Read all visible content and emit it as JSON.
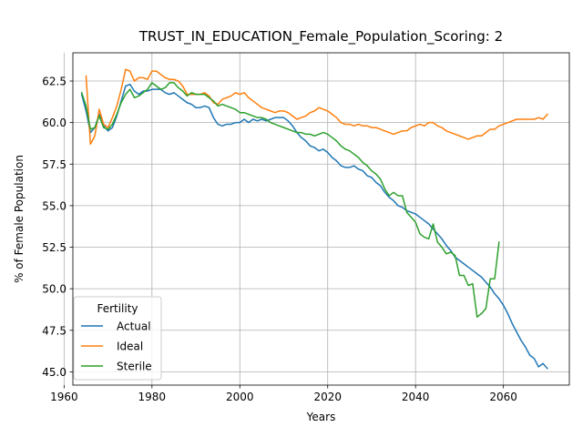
{
  "chart_data": {
    "type": "line",
    "title": "TRUST_IN_EDUCATION_Female_Population_Scoring: 2",
    "xlabel": "Years",
    "ylabel": "% of Female Population",
    "xlim": [
      1962,
      2075
    ],
    "ylim": [
      44.2,
      64.2
    ],
    "xticks": [
      1960,
      1980,
      2000,
      2020,
      2040,
      2060
    ],
    "yticks": [
      45.0,
      47.5,
      50.0,
      52.5,
      55.0,
      57.5,
      60.0,
      62.5
    ],
    "xtick_labels": [
      "1960",
      "1980",
      "2000",
      "2020",
      "2040",
      "2060"
    ],
    "ytick_labels": [
      "45.0",
      "47.5",
      "50.0",
      "52.5",
      "55.0",
      "57.5",
      "60.0",
      "62.5"
    ],
    "grid": true,
    "legend": {
      "title": "Fertility",
      "position": "lower-left"
    },
    "series": [
      {
        "name": "Actual",
        "color": "#1f77b4",
        "points": [
          [
            1964,
            61.7
          ],
          [
            1965,
            60.7
          ],
          [
            1966,
            59.4
          ],
          [
            1967,
            59.7
          ],
          [
            1968,
            60.5
          ],
          [
            1969,
            59.8
          ],
          [
            1970,
            59.5
          ],
          [
            1971,
            59.7
          ],
          [
            1972,
            60.4
          ],
          [
            1973,
            61.3
          ],
          [
            1974,
            62.2
          ],
          [
            1975,
            62.3
          ],
          [
            1976,
            61.9
          ],
          [
            1977,
            61.7
          ],
          [
            1978,
            61.9
          ],
          [
            1979,
            61.9
          ],
          [
            1980,
            62.0
          ],
          [
            1981,
            62.0
          ],
          [
            1982,
            62.0
          ],
          [
            1983,
            61.8
          ],
          [
            1984,
            61.7
          ],
          [
            1985,
            61.8
          ],
          [
            1986,
            61.6
          ],
          [
            1987,
            61.4
          ],
          [
            1988,
            61.2
          ],
          [
            1989,
            61.1
          ],
          [
            1990,
            60.9
          ],
          [
            1991,
            60.9
          ],
          [
            1992,
            61.0
          ],
          [
            1993,
            60.9
          ],
          [
            1994,
            60.3
          ],
          [
            1995,
            59.9
          ],
          [
            1996,
            59.8
          ],
          [
            1997,
            59.9
          ],
          [
            1998,
            59.9
          ],
          [
            1999,
            60.0
          ],
          [
            2000,
            60.0
          ],
          [
            2001,
            60.2
          ],
          [
            2002,
            60.0
          ],
          [
            2003,
            60.2
          ],
          [
            2004,
            60.1
          ],
          [
            2005,
            60.2
          ],
          [
            2006,
            60.1
          ],
          [
            2007,
            60.2
          ],
          [
            2008,
            60.3
          ],
          [
            2009,
            60.3
          ],
          [
            2010,
            60.3
          ],
          [
            2011,
            60.1
          ],
          [
            2012,
            59.8
          ],
          [
            2013,
            59.4
          ],
          [
            2014,
            59.1
          ],
          [
            2015,
            58.9
          ],
          [
            2016,
            58.6
          ],
          [
            2017,
            58.5
          ],
          [
            2018,
            58.3
          ],
          [
            2019,
            58.4
          ],
          [
            2020,
            58.2
          ],
          [
            2021,
            57.9
          ],
          [
            2022,
            57.7
          ],
          [
            2023,
            57.4
          ],
          [
            2024,
            57.3
          ],
          [
            2025,
            57.3
          ],
          [
            2026,
            57.4
          ],
          [
            2027,
            57.2
          ],
          [
            2028,
            57.1
          ],
          [
            2029,
            56.8
          ],
          [
            2030,
            56.7
          ],
          [
            2031,
            56.4
          ],
          [
            2032,
            56.2
          ],
          [
            2033,
            55.8
          ],
          [
            2034,
            55.5
          ],
          [
            2035,
            55.3
          ],
          [
            2036,
            55.0
          ],
          [
            2037,
            54.9
          ],
          [
            2038,
            54.7
          ],
          [
            2039,
            54.6
          ],
          [
            2040,
            54.5
          ],
          [
            2041,
            54.3
          ],
          [
            2042,
            54.1
          ],
          [
            2043,
            53.9
          ],
          [
            2044,
            53.6
          ],
          [
            2045,
            53.3
          ],
          [
            2046,
            53.0
          ],
          [
            2047,
            52.6
          ],
          [
            2048,
            52.3
          ],
          [
            2049,
            51.9
          ],
          [
            2050,
            51.7
          ],
          [
            2051,
            51.5
          ],
          [
            2052,
            51.3
          ],
          [
            2053,
            51.1
          ],
          [
            2054,
            50.9
          ],
          [
            2055,
            50.7
          ],
          [
            2056,
            50.4
          ],
          [
            2057,
            50.1
          ],
          [
            2058,
            49.7
          ],
          [
            2059,
            49.4
          ],
          [
            2060,
            49.0
          ],
          [
            2061,
            48.5
          ],
          [
            2062,
            47.9
          ],
          [
            2063,
            47.4
          ],
          [
            2064,
            46.9
          ],
          [
            2065,
            46.5
          ],
          [
            2066,
            46.0
          ],
          [
            2067,
            45.8
          ],
          [
            2068,
            45.3
          ],
          [
            2069,
            45.5
          ],
          [
            2070,
            45.2
          ]
        ]
      },
      {
        "name": "Ideal",
        "color": "#ff7f0e",
        "points": [
          [
            1965,
            62.8
          ],
          [
            1966,
            58.7
          ],
          [
            1967,
            59.2
          ],
          [
            1968,
            60.8
          ],
          [
            1969,
            59.9
          ],
          [
            1970,
            59.7
          ],
          [
            1971,
            60.3
          ],
          [
            1972,
            61.0
          ],
          [
            1973,
            62.0
          ],
          [
            1974,
            63.2
          ],
          [
            1975,
            63.1
          ],
          [
            1976,
            62.5
          ],
          [
            1977,
            62.7
          ],
          [
            1978,
            62.7
          ],
          [
            1979,
            62.6
          ],
          [
            1980,
            63.1
          ],
          [
            1981,
            63.1
          ],
          [
            1982,
            62.9
          ],
          [
            1983,
            62.7
          ],
          [
            1984,
            62.6
          ],
          [
            1985,
            62.6
          ],
          [
            1986,
            62.5
          ],
          [
            1987,
            62.2
          ],
          [
            1988,
            61.7
          ],
          [
            1989,
            61.7
          ],
          [
            1990,
            61.7
          ],
          [
            1991,
            61.7
          ],
          [
            1992,
            61.8
          ],
          [
            1993,
            61.6
          ],
          [
            1994,
            61.2
          ],
          [
            1995,
            61.1
          ],
          [
            1996,
            61.4
          ],
          [
            1997,
            61.5
          ],
          [
            1998,
            61.6
          ],
          [
            1999,
            61.8
          ],
          [
            2000,
            61.7
          ],
          [
            2001,
            61.8
          ],
          [
            2002,
            61.5
          ],
          [
            2003,
            61.3
          ],
          [
            2004,
            61.1
          ],
          [
            2005,
            60.9
          ],
          [
            2006,
            60.8
          ],
          [
            2007,
            60.7
          ],
          [
            2008,
            60.6
          ],
          [
            2009,
            60.7
          ],
          [
            2010,
            60.7
          ],
          [
            2011,
            60.6
          ],
          [
            2012,
            60.4
          ],
          [
            2013,
            60.2
          ],
          [
            2014,
            60.3
          ],
          [
            2015,
            60.4
          ],
          [
            2016,
            60.6
          ],
          [
            2017,
            60.7
          ],
          [
            2018,
            60.9
          ],
          [
            2019,
            60.8
          ],
          [
            2020,
            60.7
          ],
          [
            2021,
            60.5
          ],
          [
            2022,
            60.3
          ],
          [
            2023,
            60.0
          ],
          [
            2024,
            59.9
          ],
          [
            2025,
            59.9
          ],
          [
            2026,
            59.8
          ],
          [
            2027,
            59.9
          ],
          [
            2028,
            59.8
          ],
          [
            2029,
            59.8
          ],
          [
            2030,
            59.7
          ],
          [
            2031,
            59.7
          ],
          [
            2032,
            59.6
          ],
          [
            2033,
            59.5
          ],
          [
            2034,
            59.4
          ],
          [
            2035,
            59.3
          ],
          [
            2036,
            59.4
          ],
          [
            2037,
            59.5
          ],
          [
            2038,
            59.5
          ],
          [
            2039,
            59.7
          ],
          [
            2040,
            59.8
          ],
          [
            2041,
            59.9
          ],
          [
            2042,
            59.8
          ],
          [
            2043,
            60.0
          ],
          [
            2044,
            60.0
          ],
          [
            2045,
            59.8
          ],
          [
            2046,
            59.7
          ],
          [
            2047,
            59.5
          ],
          [
            2048,
            59.4
          ],
          [
            2049,
            59.3
          ],
          [
            2050,
            59.2
          ],
          [
            2051,
            59.1
          ],
          [
            2052,
            59.0
          ],
          [
            2053,
            59.1
          ],
          [
            2054,
            59.2
          ],
          [
            2055,
            59.2
          ],
          [
            2056,
            59.4
          ],
          [
            2057,
            59.6
          ],
          [
            2058,
            59.6
          ],
          [
            2059,
            59.8
          ],
          [
            2060,
            59.9
          ],
          [
            2061,
            60.0
          ],
          [
            2062,
            60.1
          ],
          [
            2063,
            60.2
          ],
          [
            2064,
            60.2
          ],
          [
            2065,
            60.2
          ],
          [
            2066,
            60.2
          ],
          [
            2067,
            60.2
          ],
          [
            2068,
            60.3
          ],
          [
            2069,
            60.2
          ],
          [
            2070,
            60.5
          ]
        ]
      },
      {
        "name": "Sterile",
        "color": "#2ca02c",
        "points": [
          [
            1964,
            61.8
          ],
          [
            1965,
            61.0
          ],
          [
            1966,
            59.6
          ],
          [
            1967,
            59.7
          ],
          [
            1968,
            60.4
          ],
          [
            1969,
            59.7
          ],
          [
            1970,
            59.6
          ],
          [
            1971,
            59.9
          ],
          [
            1972,
            60.5
          ],
          [
            1973,
            61.2
          ],
          [
            1974,
            61.7
          ],
          [
            1975,
            62.0
          ],
          [
            1976,
            61.5
          ],
          [
            1977,
            61.6
          ],
          [
            1978,
            61.8
          ],
          [
            1979,
            62.0
          ],
          [
            1980,
            62.4
          ],
          [
            1981,
            62.2
          ],
          [
            1982,
            62.0
          ],
          [
            1983,
            62.1
          ],
          [
            1984,
            62.4
          ],
          [
            1985,
            62.4
          ],
          [
            1986,
            62.1
          ],
          [
            1987,
            61.9
          ],
          [
            1988,
            61.6
          ],
          [
            1989,
            61.8
          ],
          [
            1990,
            61.7
          ],
          [
            1991,
            61.7
          ],
          [
            1992,
            61.7
          ],
          [
            1993,
            61.5
          ],
          [
            1994,
            61.3
          ],
          [
            1995,
            61.0
          ],
          [
            1996,
            61.1
          ],
          [
            1997,
            61.0
          ],
          [
            1998,
            60.9
          ],
          [
            1999,
            60.8
          ],
          [
            2000,
            60.6
          ],
          [
            2001,
            60.6
          ],
          [
            2002,
            60.5
          ],
          [
            2003,
            60.4
          ],
          [
            2004,
            60.3
          ],
          [
            2005,
            60.3
          ],
          [
            2006,
            60.2
          ],
          [
            2007,
            60.0
          ],
          [
            2008,
            59.9
          ],
          [
            2009,
            59.8
          ],
          [
            2010,
            59.7
          ],
          [
            2011,
            59.6
          ],
          [
            2012,
            59.5
          ],
          [
            2013,
            59.4
          ],
          [
            2014,
            59.4
          ],
          [
            2015,
            59.3
          ],
          [
            2016,
            59.3
          ],
          [
            2017,
            59.2
          ],
          [
            2018,
            59.3
          ],
          [
            2019,
            59.4
          ],
          [
            2020,
            59.3
          ],
          [
            2021,
            59.1
          ],
          [
            2022,
            58.9
          ],
          [
            2023,
            58.6
          ],
          [
            2024,
            58.4
          ],
          [
            2025,
            58.3
          ],
          [
            2026,
            58.1
          ],
          [
            2027,
            57.9
          ],
          [
            2028,
            57.6
          ],
          [
            2029,
            57.4
          ],
          [
            2030,
            57.1
          ],
          [
            2031,
            56.9
          ],
          [
            2032,
            56.6
          ],
          [
            2033,
            56.0
          ],
          [
            2034,
            55.6
          ],
          [
            2035,
            55.8
          ],
          [
            2036,
            55.6
          ],
          [
            2037,
            55.6
          ],
          [
            2038,
            54.6
          ],
          [
            2039,
            54.3
          ],
          [
            2040,
            54.0
          ],
          [
            2041,
            53.3
          ],
          [
            2042,
            53.1
          ],
          [
            2043,
            53.0
          ],
          [
            2044,
            53.9
          ],
          [
            2045,
            52.8
          ],
          [
            2046,
            52.5
          ],
          [
            2047,
            52.1
          ],
          [
            2048,
            52.2
          ],
          [
            2049,
            52.0
          ],
          [
            2050,
            50.8
          ],
          [
            2051,
            50.8
          ],
          [
            2052,
            50.2
          ],
          [
            2053,
            50.3
          ],
          [
            2054,
            48.3
          ],
          [
            2055,
            48.5
          ],
          [
            2056,
            48.8
          ],
          [
            2057,
            50.6
          ],
          [
            2058,
            50.6
          ],
          [
            2059,
            52.8
          ]
        ]
      }
    ]
  }
}
